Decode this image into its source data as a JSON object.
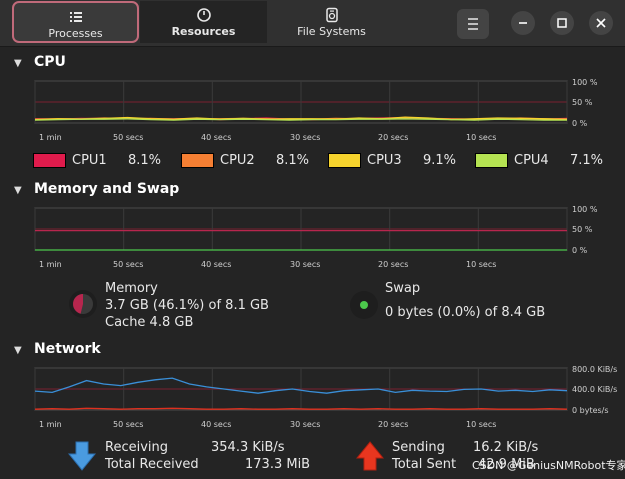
{
  "tabs": [
    {
      "label": "Processes",
      "icon": "list-icon"
    },
    {
      "label": "Resources",
      "icon": "gauge-icon"
    },
    {
      "label": "File Systems",
      "icon": "disk-icon"
    }
  ],
  "window_buttons": [
    "menu-icon",
    "minimize-icon",
    "maximize-icon",
    "close-icon"
  ],
  "cpu": {
    "title": "CPU",
    "percent_ticks": [
      "100 %",
      "50 %",
      "0 %"
    ],
    "time_ticks": [
      "1 min",
      "50 secs",
      "40 secs",
      "30 secs",
      "20 secs",
      "10 secs"
    ],
    "legend": [
      {
        "name": "CPU1",
        "value": "8.1%",
        "color": "#e01b4c"
      },
      {
        "name": "CPU2",
        "value": "8.1%",
        "color": "#f57f33"
      },
      {
        "name": "CPU3",
        "value": "9.1%",
        "color": "#f6d32d"
      },
      {
        "name": "CPU4",
        "value": "7.1%",
        "color": "#b5e352"
      }
    ]
  },
  "memory": {
    "title": "Memory and Swap",
    "percent_ticks": [
      "100 %",
      "50 %",
      "0 %"
    ],
    "time_ticks": [
      "1 min",
      "50 secs",
      "40 secs",
      "30 secs",
      "20 secs",
      "10 secs"
    ],
    "mem_label": "Memory",
    "mem_value": "3.7 GB (46.1%) of 8.1 GB",
    "cache": "Cache 4.8 GB",
    "mem_color": "#b7264e",
    "swap_label": "Swap",
    "swap_value": "0 bytes (0.0%) of 8.4 GB",
    "swap_color": "#4cc84c"
  },
  "network": {
    "title": "Network",
    "rate_ticks": [
      "800.0 KiB/s",
      "400.0 KiB/s",
      "0 bytes/s"
    ],
    "time_ticks": [
      "1 min",
      "50 secs",
      "40 secs",
      "30 secs",
      "20 secs",
      "10 secs"
    ],
    "receiving_label": "Receiving",
    "receiving_value": "354.3 KiB/s",
    "total_received_label": "Total Received",
    "total_received_value": "173.3 MiB",
    "sending_label": "Sending",
    "sending_value": "16.2 KiB/s",
    "total_sent_label": "Total Sent",
    "total_sent_value": "42.9 MiB",
    "recv_color": "#3a8fd8",
    "send_color": "#e0301e"
  },
  "watermark": "CSDN @GeniusNMRobot专家"
}
